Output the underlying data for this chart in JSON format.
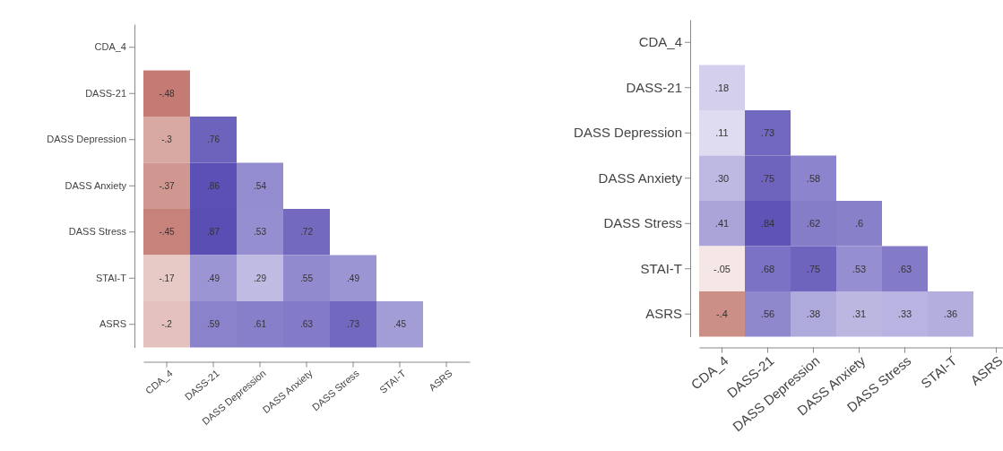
{
  "chart_data": [
    {
      "type": "heatmap",
      "categories": [
        "CDA_4",
        "DASS-21",
        "DASS Depression",
        "DASS Anxiety",
        "DASS Stress",
        "STAI-T",
        "ASRS"
      ],
      "y_categories": [
        "CDA_4",
        "DASS-21",
        "DASS Depression",
        "DASS Anxiety",
        "DASS Stress",
        "STAI-T",
        "ASRS"
      ],
      "cells": [
        [
          null,
          null,
          null,
          null,
          null,
          null,
          null
        ],
        [
          -0.48,
          null,
          null,
          null,
          null,
          null,
          null
        ],
        [
          -0.3,
          0.76,
          null,
          null,
          null,
          null,
          null
        ],
        [
          -0.37,
          0.86,
          0.54,
          null,
          null,
          null,
          null
        ],
        [
          -0.45,
          0.87,
          0.53,
          0.72,
          null,
          null,
          null
        ],
        [
          -0.17,
          0.49,
          0.29,
          0.55,
          0.49,
          null,
          null
        ],
        [
          -0.2,
          0.59,
          0.61,
          0.63,
          0.73,
          0.45,
          null
        ]
      ],
      "cell_labels": [
        [
          null,
          null,
          null,
          null,
          null,
          null,
          null
        ],
        [
          "-.48",
          null,
          null,
          null,
          null,
          null,
          null
        ],
        [
          "-.3",
          ".76",
          null,
          null,
          null,
          null,
          null
        ],
        [
          "-.37",
          ".86",
          ".54",
          null,
          null,
          null,
          null
        ],
        [
          "-.45",
          ".87",
          ".53",
          ".72",
          null,
          null,
          null
        ],
        [
          "-.17",
          ".49",
          ".29",
          ".55",
          ".49",
          null,
          null
        ],
        [
          "-.2",
          ".59",
          ".61",
          ".63",
          ".73",
          ".45",
          null
        ]
      ]
    },
    {
      "type": "heatmap",
      "categories": [
        "CDA_4",
        "DASS-21",
        "DASS Depression",
        "DASS Anxiety",
        "DASS Stress",
        "STAI-T",
        "ASRS"
      ],
      "y_categories": [
        "CDA_4",
        "DASS-21",
        "DASS Depression",
        "DASS Anxiety",
        "DASS Stress",
        "STAI-T",
        "ASRS"
      ],
      "cells": [
        [
          null,
          null,
          null,
          null,
          null,
          null,
          null
        ],
        [
          0.18,
          null,
          null,
          null,
          null,
          null,
          null
        ],
        [
          0.11,
          0.73,
          null,
          null,
          null,
          null,
          null
        ],
        [
          0.3,
          0.75,
          0.58,
          null,
          null,
          null,
          null
        ],
        [
          0.41,
          0.84,
          0.62,
          0.6,
          null,
          null,
          null
        ],
        [
          -0.05,
          0.68,
          0.75,
          0.53,
          0.63,
          null,
          null
        ],
        [
          -0.4,
          0.56,
          0.38,
          0.31,
          0.33,
          0.36,
          null
        ]
      ],
      "cell_labels": [
        [
          null,
          null,
          null,
          null,
          null,
          null,
          null
        ],
        [
          ".18",
          null,
          null,
          null,
          null,
          null,
          null
        ],
        [
          ".11",
          ".73",
          null,
          null,
          null,
          null,
          null
        ],
        [
          ".30",
          ".75",
          ".58",
          null,
          null,
          null,
          null
        ],
        [
          ".41",
          ".84",
          ".62",
          ".6",
          null,
          null,
          null
        ],
        [
          "-.05",
          ".68",
          ".75",
          ".53",
          ".63",
          null,
          null
        ],
        [
          "-.4",
          ".56",
          ".38",
          ".31",
          ".33",
          ".36",
          null
        ]
      ]
    }
  ]
}
